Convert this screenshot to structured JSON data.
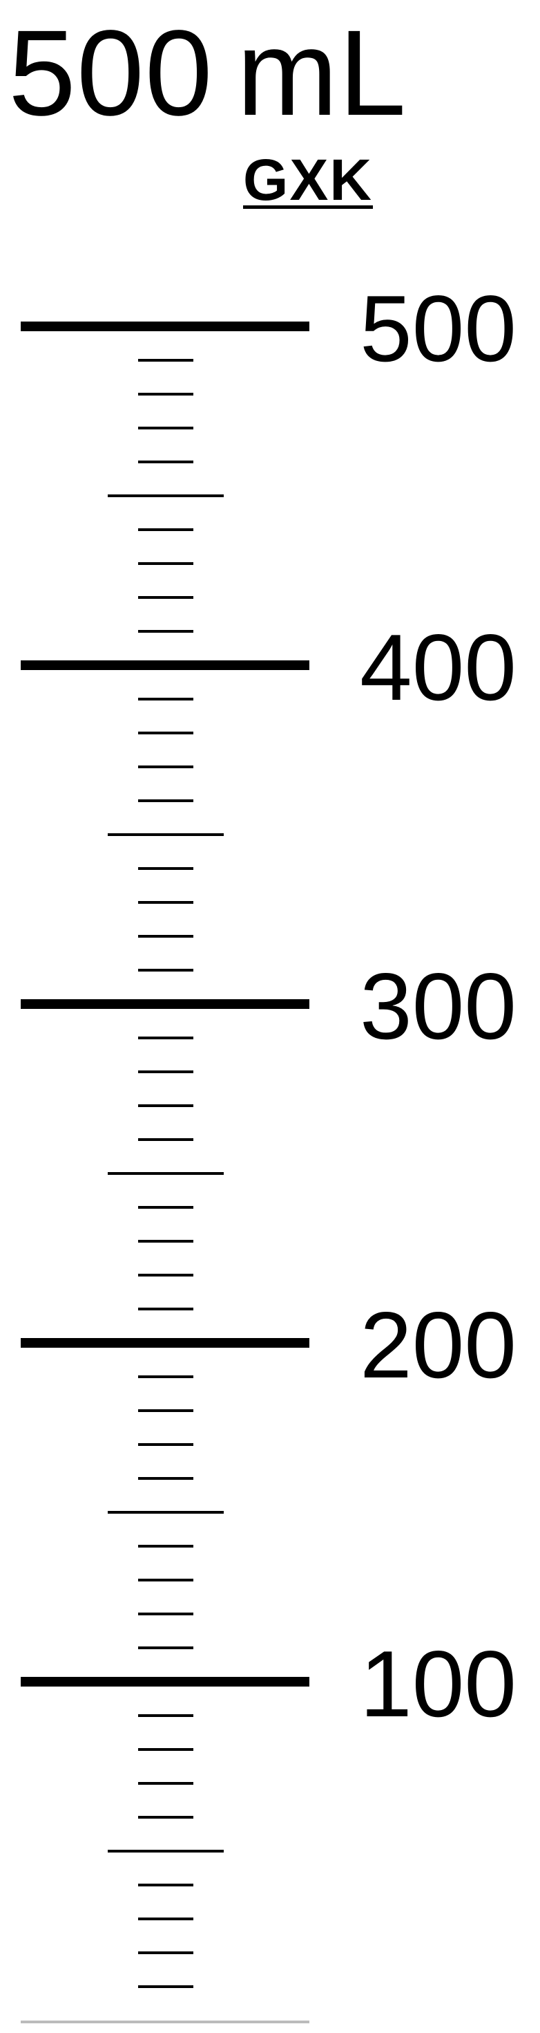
{
  "header": {
    "capacity_value": "500",
    "capacity_unit": "mL",
    "brand": "GXK"
  },
  "scale": {
    "labels": [
      "500",
      "400",
      "300",
      "200",
      "100"
    ],
    "major_values": [
      500,
      400,
      300,
      200,
      100
    ],
    "half_step": 50,
    "minor_step": 10,
    "min_value": 10,
    "max_value": 500,
    "line_color": "#000000",
    "base_line_color": "#bbbbbb"
  }
}
